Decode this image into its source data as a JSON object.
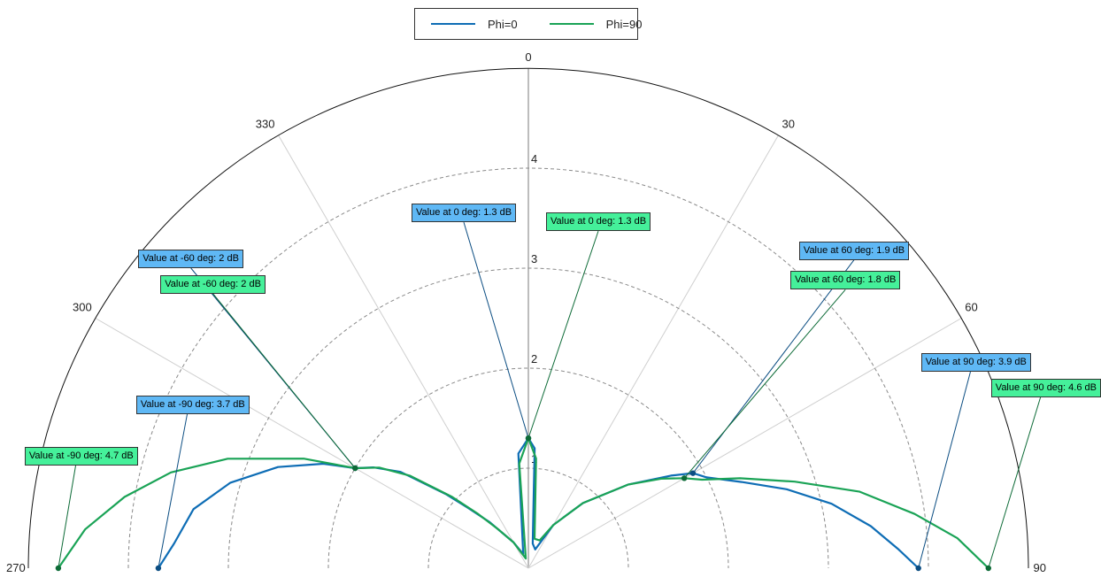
{
  "chart_data": {
    "type": "polar-line",
    "angle_ticks": [
      "270",
      "300",
      "330",
      "0",
      "30",
      "60",
      "90"
    ],
    "angle_range_deg": [
      -90,
      90
    ],
    "radial_ticks": [
      "1",
      "2",
      "3",
      "4"
    ],
    "radial_range": [
      0,
      5
    ],
    "grid": true,
    "legend": {
      "placement": "top-center",
      "entries": [
        "Phi=0",
        "Phi=90"
      ]
    },
    "series": [
      {
        "name": "Phi=0",
        "color": "#0e6db5",
        "points": [
          {
            "angle": -90,
            "r": 3.7
          },
          {
            "angle": -86,
            "r": 3.55
          },
          {
            "angle": -80,
            "r": 3.4
          },
          {
            "angle": -74,
            "r": 3.1
          },
          {
            "angle": -68,
            "r": 2.7
          },
          {
            "angle": -63,
            "r": 2.3
          },
          {
            "angle": -60,
            "r": 2.0
          },
          {
            "angle": -57,
            "r": 1.85
          },
          {
            "angle": -53,
            "r": 1.6
          },
          {
            "angle": -48,
            "r": 1.1
          },
          {
            "angle": -45,
            "r": 0.85
          },
          {
            "angle": -40,
            "r": 0.6
          },
          {
            "angle": -30,
            "r": 0.3
          },
          {
            "angle": -20,
            "r": 0.15
          },
          {
            "angle": -5,
            "r": 1.15
          },
          {
            "angle": 0,
            "r": 1.3
          },
          {
            "angle": 3,
            "r": 1.2
          },
          {
            "angle": 10,
            "r": 0.25
          },
          {
            "angle": 20,
            "r": 0.2
          },
          {
            "angle": 30,
            "r": 0.5
          },
          {
            "angle": 40,
            "r": 0.85
          },
          {
            "angle": 50,
            "r": 1.3
          },
          {
            "angle": 57,
            "r": 1.7
          },
          {
            "angle": 60,
            "r": 1.9
          },
          {
            "angle": 63,
            "r": 2.0
          },
          {
            "angle": 68,
            "r": 2.3
          },
          {
            "angle": 73,
            "r": 2.7
          },
          {
            "angle": 78,
            "r": 3.1
          },
          {
            "angle": 83,
            "r": 3.45
          },
          {
            "angle": 87,
            "r": 3.7
          },
          {
            "angle": 90,
            "r": 3.9
          }
        ]
      },
      {
        "name": "Phi=90",
        "color": "#1aa356",
        "points": [
          {
            "angle": -90,
            "r": 4.7
          },
          {
            "angle": -85,
            "r": 4.45
          },
          {
            "angle": -80,
            "r": 4.1
          },
          {
            "angle": -75,
            "r": 3.7
          },
          {
            "angle": -70,
            "r": 3.2
          },
          {
            "angle": -64,
            "r": 2.5
          },
          {
            "angle": -60,
            "r": 2.0
          },
          {
            "angle": -56,
            "r": 1.8
          },
          {
            "angle": -52,
            "r": 1.5
          },
          {
            "angle": -47,
            "r": 1.05
          },
          {
            "angle": -43,
            "r": 0.75
          },
          {
            "angle": -38,
            "r": 0.5
          },
          {
            "angle": -30,
            "r": 0.3
          },
          {
            "angle": -15,
            "r": 0.1
          },
          {
            "angle": -5,
            "r": 1.05
          },
          {
            "angle": 0,
            "r": 1.3
          },
          {
            "angle": 4,
            "r": 1.1
          },
          {
            "angle": 12,
            "r": 0.3
          },
          {
            "angle": 22,
            "r": 0.3
          },
          {
            "angle": 30,
            "r": 0.5
          },
          {
            "angle": 40,
            "r": 0.85
          },
          {
            "angle": 50,
            "r": 1.3
          },
          {
            "angle": 56,
            "r": 1.6
          },
          {
            "angle": 60,
            "r": 1.8
          },
          {
            "angle": 63,
            "r": 1.95
          },
          {
            "angle": 67,
            "r": 2.3
          },
          {
            "angle": 72,
            "r": 2.8
          },
          {
            "angle": 77,
            "r": 3.4
          },
          {
            "angle": 82,
            "r": 3.9
          },
          {
            "angle": 86,
            "r": 4.3
          },
          {
            "angle": 90,
            "r": 4.6
          }
        ]
      }
    ],
    "annotations": [
      {
        "series": 0,
        "angle": 0,
        "r": 1.3,
        "text": "Value at 0 deg: 1.3 dB"
      },
      {
        "series": 1,
        "angle": 0,
        "r": 1.3,
        "text": "Value at 0 deg: 1.3 dB"
      },
      {
        "series": 0,
        "angle": -60,
        "r": 2.0,
        "text": "Value at -60 deg: 2 dB"
      },
      {
        "series": 1,
        "angle": -60,
        "r": 2.0,
        "text": "Value at -60 deg: 2 dB"
      },
      {
        "series": 0,
        "angle": 60,
        "r": 1.9,
        "text": "Value at 60 deg: 1.9 dB"
      },
      {
        "series": 1,
        "angle": 60,
        "r": 1.8,
        "text": "Value at 60 deg: 1.8 dB"
      },
      {
        "series": 0,
        "angle": -90,
        "r": 3.7,
        "text": "Value at -90 deg: 3.7 dB"
      },
      {
        "series": 1,
        "angle": -90,
        "r": 4.7,
        "text": "Value at -90 deg: 4.7 dB"
      },
      {
        "series": 0,
        "angle": 90,
        "r": 3.9,
        "text": "Value at 90 deg: 3.9 dB"
      },
      {
        "series": 1,
        "angle": 90,
        "r": 4.6,
        "text": "Value at 90 deg: 4.6 dB"
      }
    ]
  }
}
